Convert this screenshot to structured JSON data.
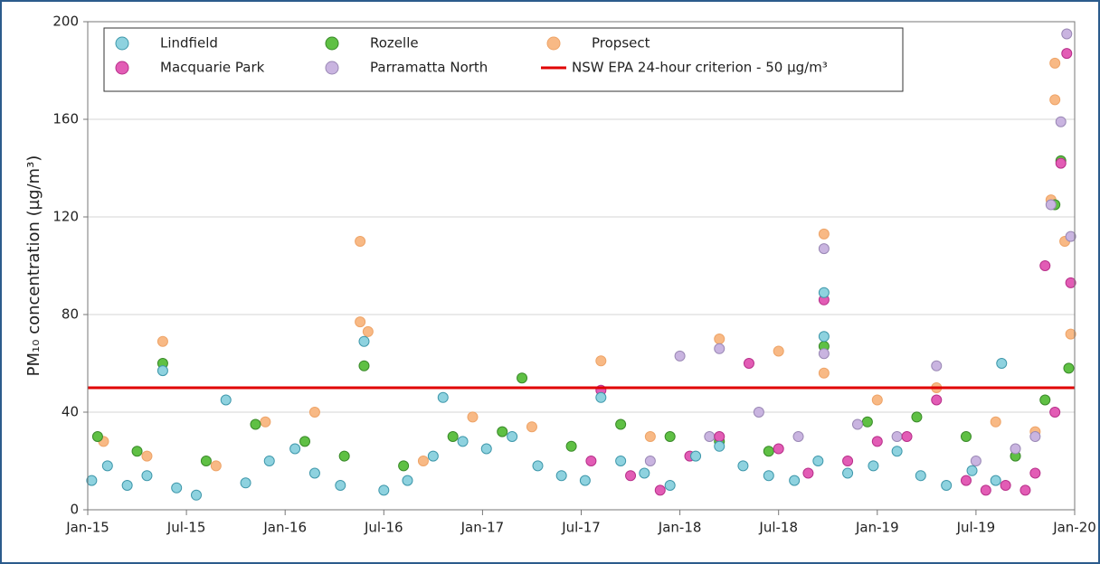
{
  "chart_data": {
    "type": "scatter",
    "y_label": "PM₁₀ concentration (µg/m³)",
    "xlim": [
      2015,
      2020
    ],
    "ylim": [
      0,
      200
    ],
    "xticks": [
      {
        "value": 2015,
        "label": "Jan-15"
      },
      {
        "value": 2015.5,
        "label": "Jul-15"
      },
      {
        "value": 2016,
        "label": "Jan-16"
      },
      {
        "value": 2016.5,
        "label": "Jul-16"
      },
      {
        "value": 2017,
        "label": "Jan-17"
      },
      {
        "value": 2017.5,
        "label": "Jul-17"
      },
      {
        "value": 2018,
        "label": "Jan-18"
      },
      {
        "value": 2018.5,
        "label": "Jul-18"
      },
      {
        "value": 2019,
        "label": "Jan-19"
      },
      {
        "value": 2019.5,
        "label": "Jul-19"
      },
      {
        "value": 2020,
        "label": "Jan-20"
      }
    ],
    "yticks": [
      0,
      40,
      80,
      120,
      160,
      200
    ],
    "grid": true,
    "legend": "upper left",
    "series": [
      {
        "name": "Lindfield",
        "color": "#8ed2df",
        "edge_color": "#3f98ab",
        "x": [
          2015.02,
          2015.1,
          2015.2,
          2015.3,
          2015.38,
          2015.45,
          2015.55,
          2015.7,
          2015.8,
          2015.92,
          2016.05,
          2016.15,
          2016.28,
          2016.4,
          2016.5,
          2016.62,
          2016.75,
          2016.8,
          2016.9,
          2017.02,
          2017.15,
          2017.28,
          2017.4,
          2017.52,
          2017.6,
          2017.7,
          2017.82,
          2017.95,
          2018.08,
          2018.2,
          2018.32,
          2018.45,
          2018.58,
          2018.7,
          2018.73,
          2018.73,
          2018.85,
          2018.98,
          2019.1,
          2019.22,
          2019.35,
          2019.48,
          2019.6,
          2019.63
        ],
        "values": [
          12,
          18,
          10,
          14,
          57,
          9,
          6,
          45,
          11,
          20,
          25,
          15,
          10,
          69,
          8,
          12,
          22,
          46,
          28,
          25,
          30,
          18,
          14,
          12,
          46,
          20,
          15,
          10,
          22,
          26,
          18,
          14,
          12,
          20,
          89,
          71,
          15,
          18,
          24,
          14,
          10,
          16,
          12,
          60
        ]
      },
      {
        "name": "Rozelle",
        "color": "#5fc044",
        "edge_color": "#3a8a2a",
        "x": [
          2015.05,
          2015.25,
          2015.38,
          2015.6,
          2015.85,
          2016.1,
          2016.3,
          2016.4,
          2016.6,
          2016.85,
          2017.1,
          2017.2,
          2017.45,
          2017.7,
          2017.95,
          2018.2,
          2018.45,
          2018.73,
          2018.95,
          2019.2,
          2019.45,
          2019.7,
          2019.85,
          2019.9,
          2019.93,
          2019.97
        ],
        "values": [
          30,
          24,
          60,
          20,
          35,
          28,
          22,
          59,
          18,
          30,
          32,
          54,
          26,
          35,
          30,
          28,
          24,
          67,
          36,
          38,
          30,
          22,
          45,
          125,
          143,
          58
        ]
      },
      {
        "name": "Propsect",
        "color": "#f8b985",
        "edge_color": "#eea468",
        "x": [
          2015.08,
          2015.3,
          2015.38,
          2015.65,
          2015.9,
          2016.15,
          2016.38,
          2016.38,
          2016.42,
          2016.7,
          2016.95,
          2017.25,
          2017.6,
          2017.85,
          2018.2,
          2018.5,
          2018.73,
          2018.73,
          2019.0,
          2019.3,
          2019.6,
          2019.8,
          2019.88,
          2019.9,
          2019.9,
          2019.95,
          2019.98
        ],
        "values": [
          28,
          22,
          69,
          18,
          36,
          40,
          110,
          77,
          73,
          20,
          38,
          34,
          61,
          30,
          70,
          65,
          113,
          56,
          45,
          50,
          36,
          32,
          127,
          183,
          168,
          110,
          72
        ]
      },
      {
        "name": "Macquarie Park",
        "color": "#e25cb5",
        "edge_color": "#b8308a",
        "x": [
          2017.55,
          2017.6,
          2017.75,
          2017.9,
          2018.05,
          2018.2,
          2018.35,
          2018.5,
          2018.65,
          2018.73,
          2018.85,
          2019.0,
          2019.15,
          2019.3,
          2019.45,
          2019.55,
          2019.65,
          2019.75,
          2019.8,
          2019.85,
          2019.9,
          2019.93,
          2019.96,
          2019.98
        ],
        "values": [
          20,
          49,
          14,
          8,
          22,
          30,
          60,
          25,
          15,
          86,
          20,
          28,
          30,
          45,
          12,
          8,
          10,
          8,
          15,
          100,
          40,
          142,
          187,
          93
        ]
      },
      {
        "name": "Parramatta North",
        "color": "#c9b4e0",
        "edge_color": "#9a88b5",
        "x": [
          2017.85,
          2018.0,
          2018.15,
          2018.2,
          2018.4,
          2018.6,
          2018.73,
          2018.73,
          2018.9,
          2019.1,
          2019.3,
          2019.5,
          2019.7,
          2019.8,
          2019.88,
          2019.93,
          2019.96,
          2019.98
        ],
        "values": [
          20,
          63,
          30,
          66,
          40,
          30,
          107,
          64,
          35,
          30,
          59,
          20,
          25,
          30,
          125,
          159,
          195,
          112
        ]
      }
    ],
    "reference_line": {
      "name": "NSW EPA 24-hour criterion - 50 µg/m³",
      "value": 50,
      "color": "#e00000"
    }
  }
}
